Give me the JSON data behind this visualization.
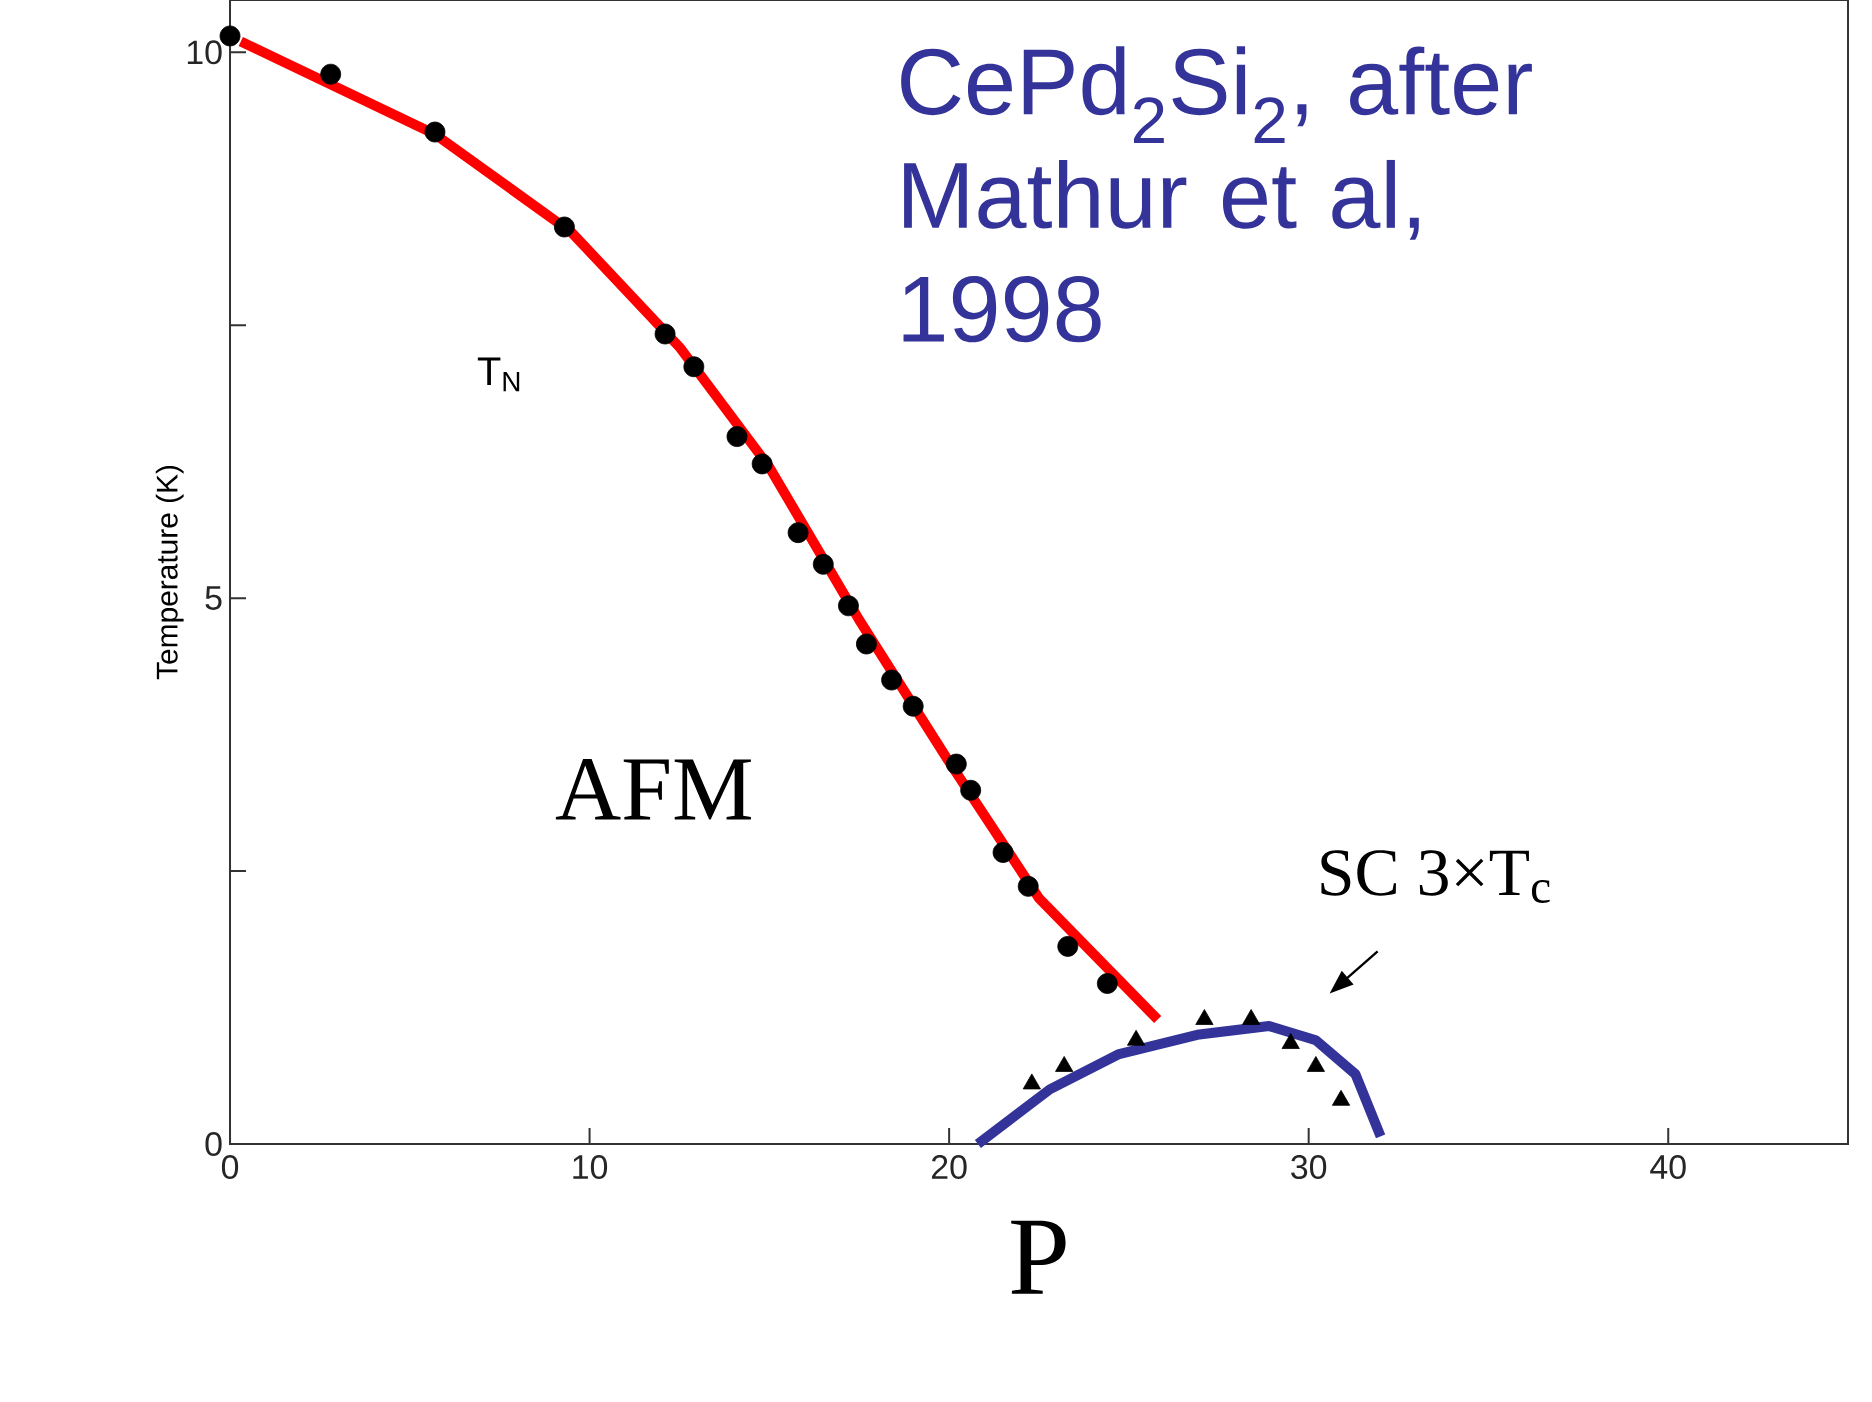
{
  "chart_data": {
    "type": "scatter",
    "title": "CePd$_{2}$Si$_{2}$, after Mathur et al, 1998",
    "xlabel": "P",
    "ylabel": "Temperature (K)",
    "xlim": [
      0,
      45
    ],
    "ylim": [
      0,
      10.48
    ],
    "xticks": [
      0,
      10,
      20,
      30,
      40
    ],
    "yticks": [
      0,
      {
        "value": 2.5,
        "label": null
      },
      5,
      {
        "value": 7.5,
        "label": null
      },
      10
    ],
    "grid": false,
    "annotations": [
      "T$_{N}$",
      "AFM",
      "SC 3×T$_{c}$"
    ],
    "series": [
      {
        "marker": "circle",
        "color": "#000000",
        "x": [
          0,
          2.8,
          5.7,
          9.3,
          12.1,
          12.9,
          14.1,
          14.8,
          15.8,
          16.5,
          17.2,
          17.7,
          18.4,
          19.0,
          20.2,
          20.6,
          21.5,
          22.2,
          23.3,
          24.4
        ],
        "values": [
          10.15,
          9.8,
          9.27,
          8.4,
          7.42,
          7.12,
          6.48,
          6.23,
          5.6,
          5.31,
          4.93,
          4.58,
          4.25,
          4.01,
          3.48,
          3.24,
          2.67,
          2.36,
          1.81,
          1.47
        ]
      },
      {
        "marker": "triangle",
        "color": "#000000",
        "x": [
          22.3,
          23.2,
          25.2,
          27.1,
          28.4,
          29.5,
          30.2,
          30.9
        ],
        "values": [
          0.55,
          0.71,
          0.95,
          1.14,
          1.14,
          0.92,
          0.71,
          0.4
        ]
      },
      {
        "type": "line",
        "marker": "none",
        "color": "#ff0000",
        "x": [
          0.3,
          5.7,
          9.5,
          12.5,
          15,
          17.5,
          20,
          22.5,
          25.8
        ],
        "values": [
          10.1,
          9.25,
          8.35,
          7.3,
          6.2,
          4.8,
          3.5,
          2.25,
          1.14
        ]
      },
      {
        "type": "line",
        "marker": "none",
        "color": "#333399",
        "x": [
          20.8,
          22.8,
          24.7,
          26.9,
          28.9,
          30.2,
          31.3,
          32.0
        ],
        "values": [
          0,
          0.5,
          0.82,
          1.0,
          1.08,
          0.95,
          0.64,
          0.07
        ]
      }
    ]
  }
}
